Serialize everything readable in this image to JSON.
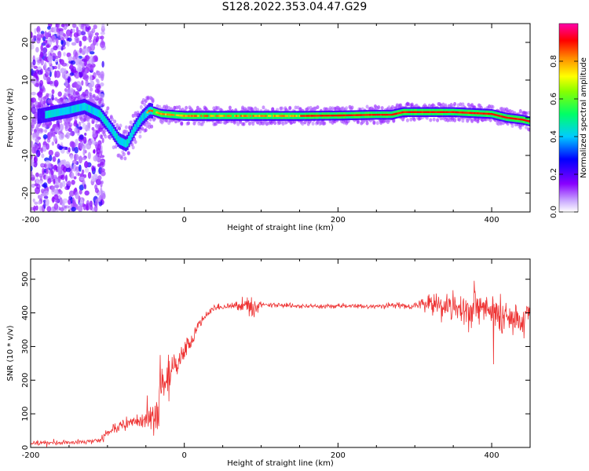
{
  "figure_title": "S128.2022.353.04.47.G29",
  "chart_data": [
    {
      "type": "heatmap",
      "title": "",
      "xlabel": "Height of straight line (km)",
      "ylabel": "Frequency (Hz)",
      "xlim": [
        -200,
        450
      ],
      "ylim": [
        -25,
        25
      ],
      "xticks": [
        -200,
        0,
        200,
        400
      ],
      "yticks": [
        -20,
        -10,
        0,
        10,
        20
      ],
      "colorbar": {
        "label": "Normalized spectral amplitude",
        "range": [
          0,
          1
        ],
        "ticks": [
          0.0,
          0.2,
          0.4,
          0.6,
          0.8
        ],
        "colormap": [
          "#ffffff",
          "#8800ff",
          "#0000ff",
          "#00ffff",
          "#00ff00",
          "#ffff00",
          "#ff8800",
          "#ff0000",
          "#ff00aa"
        ]
      },
      "ridge": {
        "x": [
          -200,
          -150,
          -130,
          -110,
          -95,
          -85,
          -75,
          -65,
          -55,
          -45,
          -30,
          0,
          50,
          100,
          150,
          200,
          250,
          270,
          285,
          300,
          350,
          380,
          400,
          420,
          440,
          450
        ],
        "frequency": [
          0,
          2,
          3,
          1,
          -3,
          -6,
          -7,
          -3,
          0,
          2,
          1,
          0.5,
          0.5,
          0.5,
          0.5,
          0.6,
          0.8,
          0.8,
          1.5,
          1.5,
          1.5,
          1.2,
          1,
          0,
          -0.5,
          -1
        ]
      },
      "grid": false
    },
    {
      "type": "line",
      "title": "",
      "xlabel": "Height of straight line (km)",
      "ylabel": "SNR (10 * v/v)",
      "xlim": [
        -200,
        450
      ],
      "ylim": [
        0,
        560
      ],
      "xticks": [
        -200,
        0,
        200,
        400
      ],
      "yticks": [
        0,
        100,
        200,
        300,
        400,
        500
      ],
      "series": [
        {
          "color": "#ee3333",
          "envelope": {
            "x": [
              -200,
              -150,
              -110,
              -100,
              -80,
              -60,
              -45,
              -35,
              -30,
              -20,
              -15,
              -10,
              0,
              10,
              20,
              30,
              40,
              60,
              80,
              90,
              100,
              150,
              200,
              250,
              300,
              320,
              340,
              360,
              380,
              400,
              420,
              440,
              450
            ],
            "mean": [
              12,
              15,
              20,
              40,
              70,
              80,
              80,
              100,
              150,
              200,
              240,
              250,
              280,
              320,
              370,
              400,
              415,
              420,
              425,
              410,
              425,
              420,
              420,
              420,
              420,
              430,
              420,
              410,
              420,
              400,
              390,
              380,
              420
            ],
            "amplitude": [
              10,
              10,
              12,
              20,
              30,
              30,
              60,
              90,
              140,
              130,
              50,
              60,
              40,
              30,
              20,
              15,
              12,
              15,
              40,
              50,
              12,
              10,
              10,
              10,
              15,
              40,
              60,
              70,
              90,
              100,
              80,
              80,
              50
            ]
          }
        }
      ],
      "grid": false
    }
  ]
}
